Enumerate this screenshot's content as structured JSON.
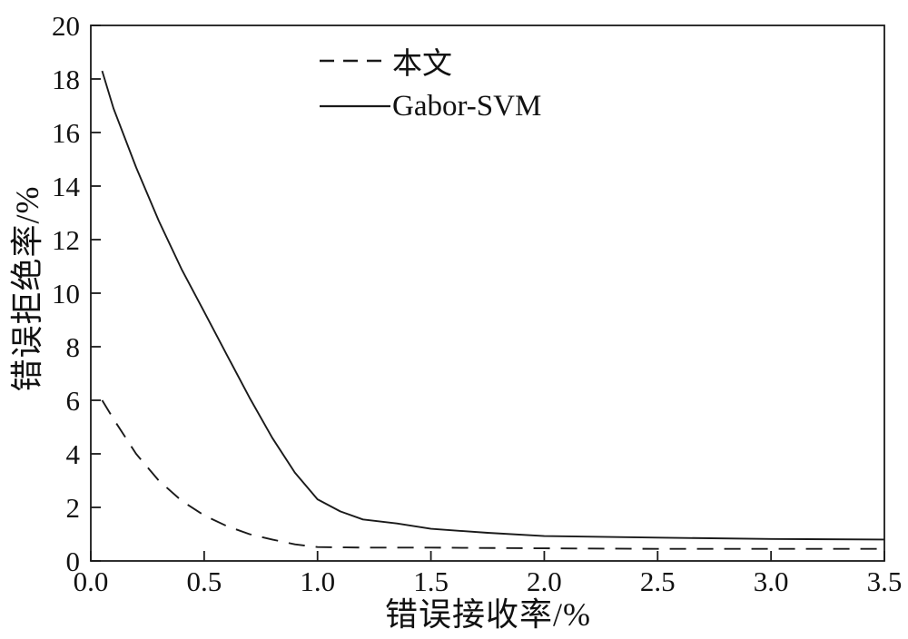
{
  "colors": {
    "line": "#1a1a1a",
    "axis": "#1a1a1a",
    "background": "#ffffff",
    "text": "#111111"
  },
  "chart_data": {
    "type": "line",
    "title": "",
    "xlabel": "错误接收率/%",
    "ylabel": "错误拒绝率/%",
    "xlim": [
      0,
      3.5
    ],
    "ylim": [
      0,
      20
    ],
    "x_ticks": [
      0,
      0.5,
      1.0,
      1.5,
      2.0,
      2.5,
      3.0,
      3.5
    ],
    "x_tick_labels": [
      "0.0",
      "0.5",
      "1.0",
      "1.5",
      "2.0",
      "2.5",
      "3.0",
      "3.5"
    ],
    "y_ticks": [
      0,
      2,
      4,
      6,
      8,
      10,
      12,
      14,
      16,
      18,
      20
    ],
    "y_tick_labels": [
      "0",
      "2",
      "4",
      "6",
      "8",
      "10",
      "12",
      "14",
      "16",
      "18",
      "20"
    ],
    "grid": false,
    "legend_position": "upper-center-inside",
    "series": [
      {
        "name": "本文",
        "style": "dashed",
        "color": "#1a1a1a",
        "x": [
          0.05,
          0.1,
          0.2,
          0.3,
          0.4,
          0.5,
          0.6,
          0.7,
          0.8,
          0.9,
          1.0,
          1.2,
          1.5,
          2.0,
          2.5,
          3.0,
          3.5
        ],
        "y": [
          6.0,
          5.3,
          4.0,
          3.0,
          2.25,
          1.7,
          1.3,
          1.0,
          0.8,
          0.62,
          0.52,
          0.5,
          0.5,
          0.47,
          0.45,
          0.45,
          0.45
        ]
      },
      {
        "name": "Gabor-SVM",
        "style": "solid",
        "color": "#1a1a1a",
        "x": [
          0.05,
          0.1,
          0.2,
          0.3,
          0.4,
          0.5,
          0.6,
          0.7,
          0.8,
          0.9,
          1.0,
          1.1,
          1.2,
          1.35,
          1.5,
          1.75,
          2.0,
          2.5,
          3.0,
          3.5
        ],
        "y": [
          18.3,
          16.9,
          14.7,
          12.7,
          10.9,
          9.3,
          7.7,
          6.1,
          4.6,
          3.3,
          2.3,
          1.85,
          1.55,
          1.4,
          1.2,
          1.05,
          0.93,
          0.87,
          0.82,
          0.8
        ]
      }
    ]
  }
}
